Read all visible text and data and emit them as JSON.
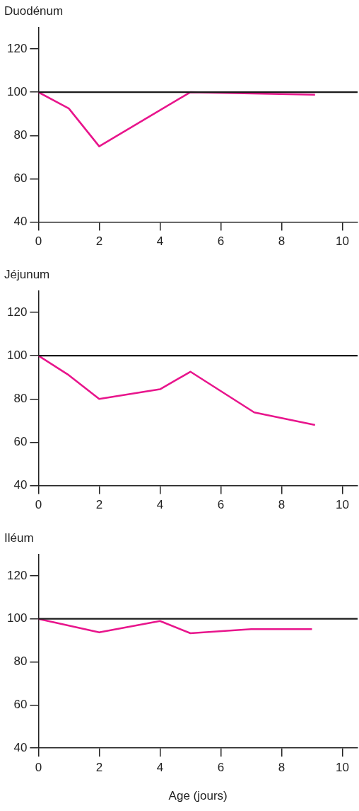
{
  "chart_data": [
    {
      "type": "line",
      "title": "Duodénum",
      "x": [
        0,
        1,
        2,
        5,
        9.1
      ],
      "series": [
        {
          "color": "#e8158c",
          "values": [
            100,
            92.5,
            75,
            100,
            98.8
          ]
        }
      ],
      "xlim": [
        0,
        10.5
      ],
      "xticks": [
        0,
        2,
        4,
        6,
        8,
        10
      ],
      "ylim": [
        40,
        130
      ],
      "yticks": [
        40,
        60,
        80,
        100,
        120
      ],
      "ref_lines": [
        {
          "axis": "y",
          "value": 100,
          "color": "#1a1a1a"
        }
      ],
      "grid": false,
      "legend": false,
      "marker": "none"
    },
    {
      "type": "line",
      "title": "Jéjunum",
      "x": [
        0,
        1,
        2,
        4,
        5,
        7.1,
        9.1
      ],
      "series": [
        {
          "color": "#e8158c",
          "values": [
            100,
            91,
            80,
            84.5,
            92.6,
            73.8,
            68
          ]
        }
      ],
      "xlim": [
        0,
        10.5
      ],
      "xticks": [
        0,
        2,
        4,
        6,
        8,
        10
      ],
      "ylim": [
        40,
        130
      ],
      "yticks": [
        40,
        60,
        80,
        100,
        120
      ],
      "ref_lines": [
        {
          "axis": "y",
          "value": 100,
          "color": "#1a1a1a"
        }
      ],
      "grid": false,
      "legend": false,
      "marker": "none"
    },
    {
      "type": "line",
      "title": "Iléum",
      "xlabel": "Age (jours)",
      "x": [
        0,
        2,
        4,
        5,
        7,
        9
      ],
      "series": [
        {
          "color": "#e8158c",
          "values": [
            100,
            93.7,
            99,
            93.3,
            95.2,
            95.2
          ]
        }
      ],
      "xlim": [
        0,
        10.5
      ],
      "xticks": [
        0,
        2,
        4,
        6,
        8,
        10
      ],
      "ylim": [
        40,
        130
      ],
      "yticks": [
        40,
        60,
        80,
        100,
        120
      ],
      "ref_lines": [
        {
          "axis": "y",
          "value": 100,
          "color": "#1a1a1a"
        }
      ],
      "grid": false,
      "legend": false,
      "marker": "none"
    }
  ]
}
